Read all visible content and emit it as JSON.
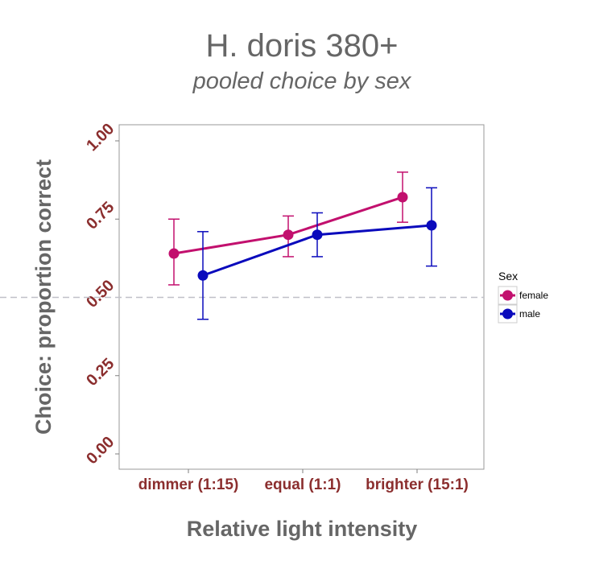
{
  "chart_data": {
    "type": "line",
    "title": "H. doris 380+",
    "subtitle": "pooled choice by sex",
    "xlabel": "Relative light intensity",
    "ylabel": "Choice: proportion correct",
    "categories": [
      "dimmer (1:15)",
      "equal (1:1)",
      "brighter (15:1)"
    ],
    "ylim": [
      0,
      1
    ],
    "yticks": [
      0.0,
      0.25,
      0.5,
      0.75,
      1.0
    ],
    "ytick_labels": [
      "0.00",
      "0.25",
      "0.50",
      "0.75",
      "1.00"
    ],
    "reference_line": {
      "y": 0.5,
      "style": "dashed"
    },
    "grid": false,
    "legend": {
      "title": "Sex",
      "position": "right"
    },
    "series": [
      {
        "name": "female",
        "color": "#c2106e",
        "values": [
          0.64,
          0.7,
          0.82
        ],
        "error_low": [
          0.54,
          0.63,
          0.74
        ],
        "error_high": [
          0.75,
          0.76,
          0.9
        ]
      },
      {
        "name": "male",
        "color": "#0a0abc",
        "values": [
          0.57,
          0.7,
          0.73
        ],
        "error_low": [
          0.43,
          0.63,
          0.6
        ],
        "error_high": [
          0.71,
          0.77,
          0.85
        ]
      }
    ],
    "tick_label_color": "#8b2e2e",
    "title_color": "#666666"
  }
}
